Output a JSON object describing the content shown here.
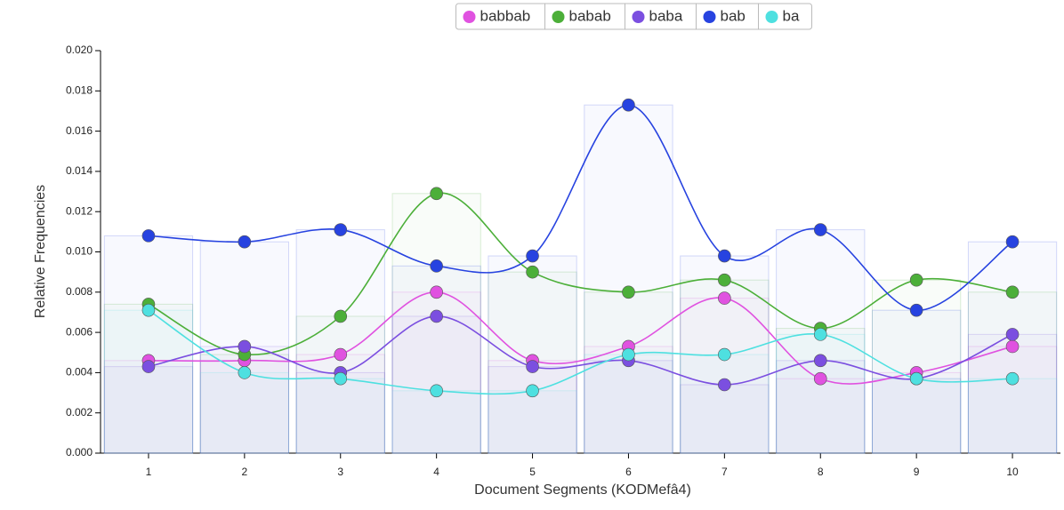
{
  "chart_data": {
    "type": "line",
    "x_label": "Document Segments (KODMefâ4)",
    "y_label": "Relative Frequencies",
    "categories": [
      "1",
      "2",
      "3",
      "4",
      "5",
      "6",
      "7",
      "8",
      "9",
      "10"
    ],
    "series": [
      {
        "name": "babbab",
        "color": "#e052e0",
        "values": [
          0.0046,
          0.0046,
          0.0049,
          0.008,
          0.0046,
          0.0053,
          0.0077,
          0.0037,
          0.004,
          0.0053
        ]
      },
      {
        "name": "babab",
        "color": "#4caf39",
        "values": [
          0.0074,
          0.0049,
          0.0068,
          0.0129,
          0.009,
          0.008,
          0.0086,
          0.0062,
          0.0086,
          0.008
        ]
      },
      {
        "name": "baba",
        "color": "#7b4fe0",
        "values": [
          0.0043,
          0.0053,
          0.004,
          0.0068,
          0.0043,
          0.0046,
          0.0034,
          0.0046,
          0.0037,
          0.0059
        ]
      },
      {
        "name": "bab",
        "color": "#2743e0",
        "values": [
          0.0108,
          0.0105,
          0.0111,
          0.0093,
          0.0098,
          0.0173,
          0.0098,
          0.0111,
          0.0071,
          0.0105
        ]
      },
      {
        "name": "ba",
        "color": "#4ee0e0",
        "values": [
          0.0071,
          0.004,
          0.0037,
          0.0031,
          0.0031,
          0.0049,
          0.0049,
          0.0059,
          0.0037,
          0.0037
        ]
      }
    ],
    "ylim": [
      0,
      0.02
    ],
    "yticks": [
      {
        "value": 0,
        "label": "0.000"
      },
      0.002,
      0.004,
      0.006,
      0.008,
      {
        "value": 0.01,
        "label": "0.010"
      },
      0.012,
      0.014,
      0.016,
      0.018,
      {
        "value": 0.02,
        "label": "0.020"
      }
    ],
    "legend": "top"
  }
}
